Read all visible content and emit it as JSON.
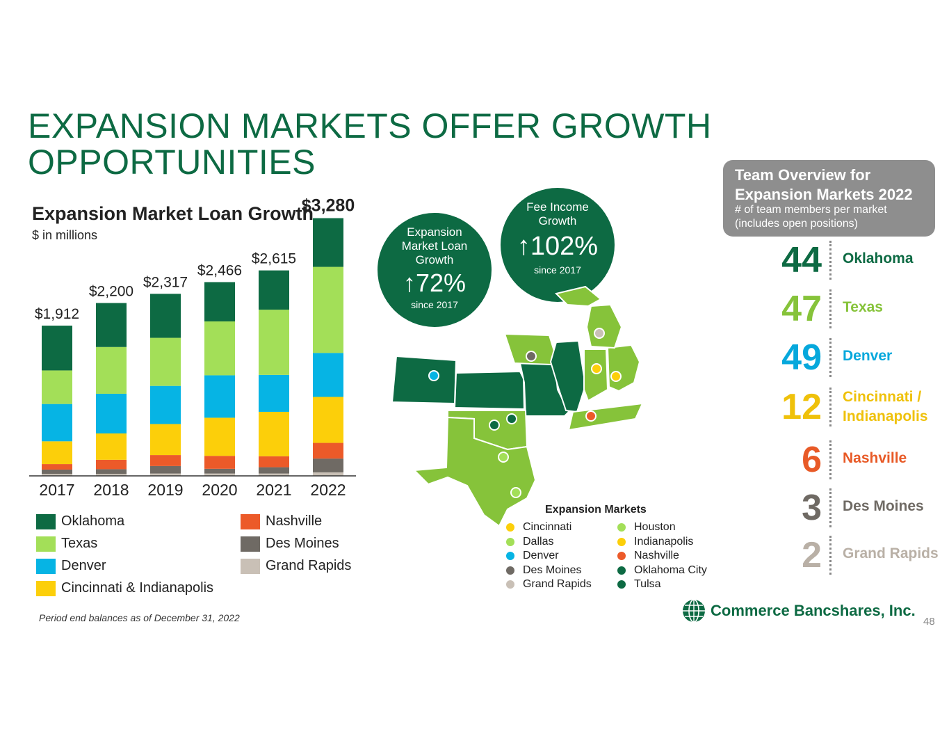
{
  "title": {
    "line1": "EXPANSION MARKETS OFFER GROWTH",
    "line2": "OPPORTUNITIES"
  },
  "chart_data": {
    "type": "bar",
    "stacked": true,
    "title": "Expansion Market Loan Growth",
    "subtitle": "$ in millions",
    "categories": [
      "2017",
      "2018",
      "2019",
      "2020",
      "2021",
      "2022"
    ],
    "totals": [
      "$1,912",
      "$2,200",
      "$2,317",
      "$2,466",
      "$2,615",
      "$3,280"
    ],
    "total_values": [
      1912,
      2200,
      2317,
      2466,
      2615,
      3280
    ],
    "ylim": [
      0,
      3400
    ],
    "series": [
      {
        "name": "Grand Rapids",
        "color": "#c9c0b6",
        "values": [
          25,
          25,
          30,
          30,
          30,
          45
        ]
      },
      {
        "name": "Des Moines",
        "color": "#6f6a64",
        "values": [
          55,
          60,
          95,
          60,
          80,
          175
        ]
      },
      {
        "name": "Nashville",
        "color": "#ec5a29",
        "values": [
          70,
          120,
          140,
          165,
          140,
          200
        ]
      },
      {
        "name": "Cincinnati & Indianapolis",
        "color": "#fccf0a",
        "values": [
          290,
          335,
          395,
          485,
          565,
          585
        ]
      },
      {
        "name": "Denver",
        "color": "#06b4e4",
        "values": [
          475,
          505,
          485,
          540,
          470,
          560
        ]
      },
      {
        "name": "Texas",
        "color": "#a3df58",
        "values": [
          427,
          595,
          612,
          686,
          830,
          1095
        ]
      },
      {
        "name": "Oklahoma",
        "color": "#0d6a43",
        "values": [
          570,
          560,
          560,
          500,
          500,
          620
        ]
      }
    ],
    "legend": [
      {
        "name": "Oklahoma",
        "color": "#0d6a43"
      },
      {
        "name": "Texas",
        "color": "#a3df58"
      },
      {
        "name": "Denver",
        "color": "#06b4e4"
      },
      {
        "name": "Cincinnati & Indianapolis",
        "color": "#fccf0a"
      },
      {
        "name": "Nashville",
        "color": "#ec5a29"
      },
      {
        "name": "Des Moines",
        "color": "#6f6a64"
      },
      {
        "name": "Grand Rapids",
        "color": "#c9c0b6"
      }
    ]
  },
  "footnote": "Period end balances as of December 31, 2022",
  "bubbles": [
    {
      "label": "Expansion Market Loan Growth",
      "value": "↑72%",
      "since": "since 2017"
    },
    {
      "label": "Fee Income Growth",
      "value": "↑102%",
      "since": "since 2017"
    }
  ],
  "team": {
    "title": "Team Overview for Expansion Markets 2022",
    "subtitle": "# of team members per market (includes open positions)",
    "rows": [
      {
        "count": "44",
        "market": "Oklahoma",
        "color": "#0d6a43"
      },
      {
        "count": "47",
        "market": "Texas",
        "color": "#86c33a"
      },
      {
        "count": "49",
        "market": "Denver",
        "color": "#06a8dc"
      },
      {
        "count": "12",
        "market": "Cincinnati / Indianapolis",
        "color": "#efc10a"
      },
      {
        "count": "6",
        "market": "Nashville",
        "color": "#e85a27"
      },
      {
        "count": "3",
        "market": "Des Moines",
        "color": "#6f6a64"
      },
      {
        "count": "2",
        "market": "Grand Rapids",
        "color": "#b9b0a6"
      }
    ]
  },
  "map_legend": {
    "title": "Expansion Markets",
    "left": [
      {
        "name": "Cincinnati",
        "color": "#fccf0a"
      },
      {
        "name": "Dallas",
        "color": "#a3df58"
      },
      {
        "name": "Denver",
        "color": "#06b4e4"
      },
      {
        "name": "Des Moines",
        "color": "#6f6a64"
      },
      {
        "name": "Grand Rapids",
        "color": "#c9c0b6"
      }
    ],
    "right": [
      {
        "name": "Houston",
        "color": "#a3df58"
      },
      {
        "name": "Indianapolis",
        "color": "#fccf0a"
      },
      {
        "name": "Nashville",
        "color": "#ec5a29"
      },
      {
        "name": "Oklahoma City",
        "color": "#0d6a43"
      },
      {
        "name": "Tulsa",
        "color": "#0d6a43"
      }
    ]
  },
  "logo": {
    "text": "Commerce Bancshares, Inc."
  },
  "page_number": "48"
}
